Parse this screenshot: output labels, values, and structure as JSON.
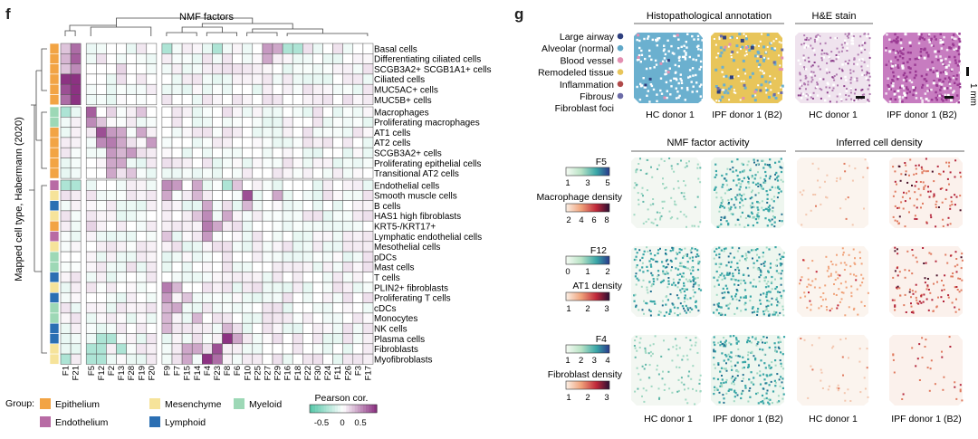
{
  "panel_f": {
    "letter": "f",
    "top_title": "NMF factors",
    "y_axis_label": "Mapped cell type, Habermann (2020)",
    "factors": [
      "F1",
      "F21",
      "F5",
      "F12",
      "F2",
      "F13",
      "F28",
      "F19",
      "F20",
      "F9",
      "F7",
      "F15",
      "F14",
      "F4",
      "F23",
      "F8",
      "F6",
      "F10",
      "F25",
      "F27",
      "F29",
      "F16",
      "F18",
      "F22",
      "F30",
      "F24",
      "F11",
      "F26",
      "F3",
      "F17"
    ],
    "groups": {
      "epithelium": [
        "Basal cells",
        "Differentiating ciliated cells",
        "SCGB3A2+ SCGB1A1+ cells",
        "Ciliated cells",
        "MUC5AC+ cells",
        "MUC5B+ cells"
      ],
      "alveolar": [
        "Macrophages",
        "Proliferating macrophages",
        "AT1 cells",
        "AT2 cells",
        "SCGB3A2+ cells",
        "Proliferating epithelial cells",
        "Transitional AT2 cells"
      ],
      "other": [
        "Endothelial cells",
        "Smooth muscle cells",
        "B cells",
        "HAS1 high fibroblasts",
        "KRT5-/KRT17+",
        "Lymphatic endothelial cells",
        "Mesothelial cells",
        "pDCs",
        "Mast cells",
        "T cells",
        "PLIN2+ fibroblasts",
        "Proliferating T cells",
        "cDCs",
        "Monocytes",
        "NK cells",
        "Plasma cells",
        "Fibroblasts",
        "Myofibroblasts"
      ]
    },
    "legend": {
      "group_label": "Group:",
      "items": [
        {
          "label": "Epithelium",
          "color": "#F2A444"
        },
        {
          "label": "Mesenchyme",
          "color": "#F6E39A"
        },
        {
          "label": "Myeloid",
          "color": "#9DD8B6"
        },
        {
          "label": "Endothelium",
          "color": "#B86BA4"
        },
        {
          "label": "Lymphoid",
          "color": "#2B6FB3"
        }
      ],
      "colorbar_title": "Pearson cor.",
      "colorbar_ticks": [
        "-0.5",
        "0",
        "0.5"
      ]
    }
  },
  "panel_g": {
    "letter": "g",
    "histo_title": "Histopathological annotation",
    "he_title": "H&E stain",
    "annotation_legend": [
      {
        "label": "Large airway",
        "color": "#2E3F7F"
      },
      {
        "label": "Alveolar (normal)",
        "color": "#5FA8C8"
      },
      {
        "label": "Blood vessel",
        "color": "#E38FB1"
      },
      {
        "label": "Remodeled tissue",
        "color": "#E8C55A"
      },
      {
        "label": "Inflammation",
        "color": "#B04A4A"
      },
      {
        "label": "Fibrous/",
        "color": "#6C6CA8"
      },
      {
        "label": "Fibroblast foci",
        "color": ""
      }
    ],
    "top_captions": [
      "HC donor 1",
      "IPF donor 1 (B2)",
      "HC donor 1",
      "IPF donor 1 (B2)"
    ],
    "scale_label": "1 mm",
    "nmf_activity_title": "NMF factor activity",
    "cell_density_title": "Inferred cell density",
    "rows": [
      {
        "factor": "F5",
        "factor_ticks": [
          "1",
          "3",
          "5"
        ],
        "density_label": "Macrophage density",
        "density_ticks": [
          "2",
          "4",
          "6",
          "8"
        ]
      },
      {
        "factor": "F12",
        "factor_ticks": [
          "0",
          "1",
          "2"
        ],
        "density_label": "AT1 density",
        "density_ticks": [
          "1",
          "2",
          "3"
        ]
      },
      {
        "factor": "F4",
        "factor_ticks": [
          "1",
          "2",
          "3",
          "4"
        ],
        "density_label": "Fibroblast density",
        "density_ticks": [
          "1",
          "2",
          "3"
        ]
      }
    ],
    "bottom_captions": [
      "HC donor 1",
      "IPF donor 1 (B2)",
      "HC donor 1",
      "IPF donor 1 (B2)"
    ]
  }
}
